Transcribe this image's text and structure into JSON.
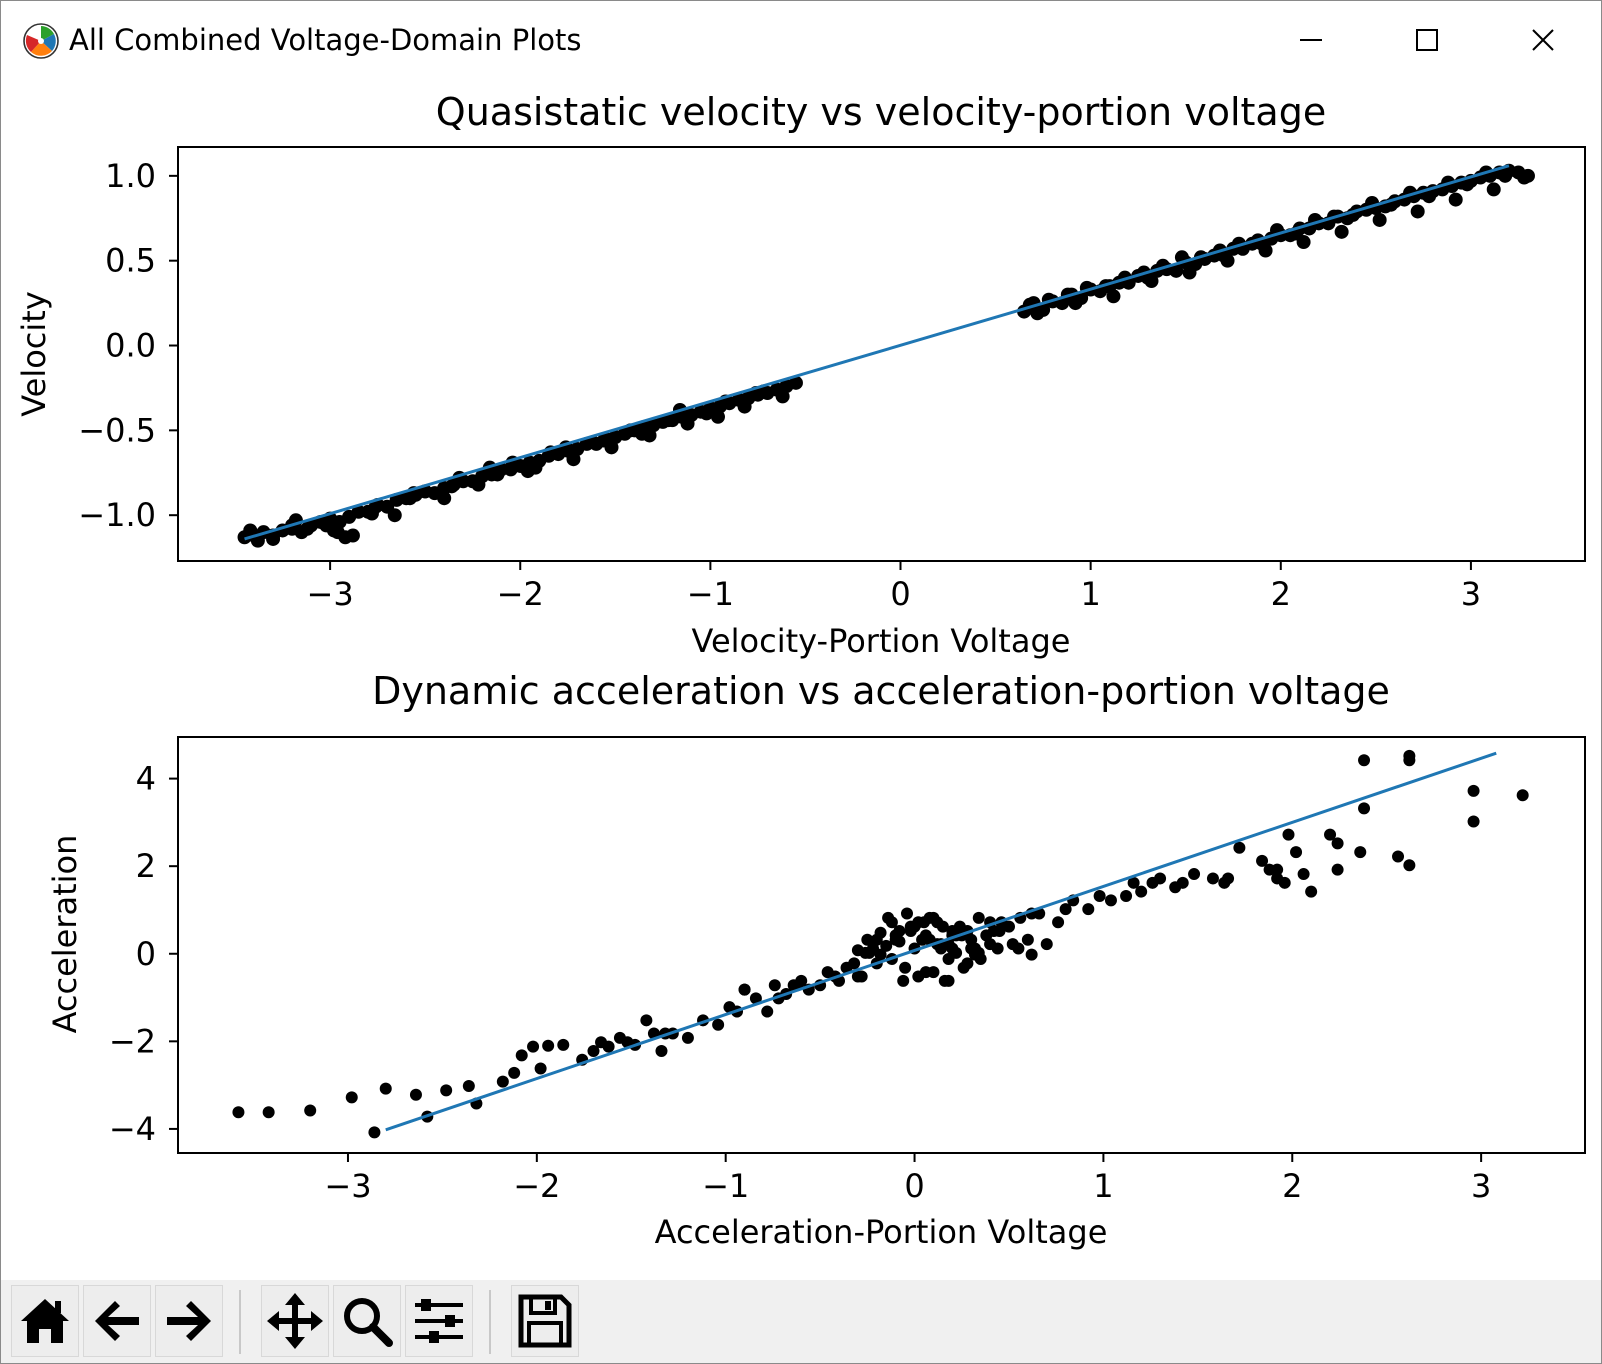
{
  "window": {
    "title": "All Combined Voltage-Domain Plots",
    "controls": {
      "minimize": "minimize-icon",
      "maximize": "maximize-icon",
      "close": "close-icon"
    }
  },
  "toolbar": {
    "buttons": [
      "home-icon",
      "back-arrow-icon",
      "forward-arrow-icon",
      "pan-move-icon",
      "zoom-magnifier-icon",
      "configure-subplots-icon",
      "save-figure-icon"
    ]
  },
  "colors": {
    "fit_line": "#1f77b4",
    "points": "#000000",
    "toolbar_bg": "#f0f0f0"
  },
  "chart_data": [
    {
      "type": "scatter",
      "title": "Quasistatic velocity vs velocity-portion voltage",
      "xlabel": "Velocity-Portion Voltage",
      "ylabel": "Velocity",
      "xlim": [
        -3.8,
        3.6
      ],
      "ylim": [
        -1.27,
        1.17
      ],
      "xticks": [
        -3,
        -2,
        -1,
        0,
        1,
        2,
        3
      ],
      "xtick_labels": [
        "−3",
        "−2",
        "−1",
        "0",
        "1",
        "2",
        "3"
      ],
      "yticks": [
        -1.0,
        -0.5,
        0.0,
        0.5,
        1.0
      ],
      "ytick_labels": [
        "−1.0",
        "−0.5",
        "0.0",
        "0.5",
        "1.0"
      ],
      "grid": false,
      "legend": "none",
      "series": [
        {
          "kind": "points",
          "x": [
            -3.45,
            -3.4,
            -3.35,
            -3.3,
            -3.25,
            -3.2,
            -3.15,
            -3.1,
            -3.05,
            -3.0,
            -2.95,
            -2.9,
            -2.85,
            -2.8,
            -2.75,
            -2.7,
            -2.65,
            -2.6,
            -2.55,
            -2.5,
            -2.45,
            -2.4,
            -2.35,
            -2.3,
            -2.25,
            -2.2,
            -2.15,
            -2.1,
            -2.05,
            -2.0,
            -1.95,
            -1.9,
            -1.85,
            -1.8,
            -1.75,
            -1.7,
            -1.65,
            -1.6,
            -1.55,
            -1.5,
            -1.45,
            -1.4,
            -1.35,
            -1.3,
            -1.25,
            -1.2,
            -1.15,
            -1.1,
            -1.05,
            -1.0,
            -0.95,
            -0.9,
            -0.85,
            -0.8,
            -0.75,
            -0.7,
            -0.65,
            -0.6,
            -0.55,
            -3.42,
            -3.3,
            -3.2,
            -3.12,
            -3.02,
            -2.96,
            -2.88,
            -2.78,
            -2.66,
            -2.58,
            -2.5,
            -2.4,
            -2.32,
            -2.22,
            -2.12,
            -2.04,
            -1.92,
            -1.84,
            -1.72,
            -1.62,
            -1.52,
            -1.42,
            -1.32,
            -1.22,
            -1.12,
            -1.02,
            -0.92,
            -0.82,
            -0.72,
            -0.62,
            -3.38,
            -3.18,
            -2.98,
            -2.92,
            -2.76,
            -2.56,
            -2.36,
            -2.16,
            -1.96,
            -1.76,
            -1.56,
            -1.36,
            -1.16,
            -0.96,
            -0.76,
            0.65,
            0.7,
            0.75,
            0.8,
            0.85,
            0.9,
            0.95,
            1.0,
            1.05,
            1.1,
            1.15,
            1.2,
            1.25,
            1.3,
            1.35,
            1.4,
            1.45,
            1.5,
            1.55,
            1.6,
            1.65,
            1.7,
            1.75,
            1.8,
            1.85,
            1.9,
            1.95,
            2.0,
            2.05,
            2.1,
            2.15,
            2.2,
            2.25,
            2.3,
            2.35,
            2.4,
            2.45,
            2.5,
            2.55,
            2.6,
            2.65,
            2.7,
            2.75,
            2.8,
            2.85,
            2.9,
            2.95,
            3.0,
            3.05,
            3.1,
            3.15,
            3.2,
            3.25,
            3.3,
            0.68,
            0.78,
            0.88,
            0.98,
            1.08,
            1.18,
            1.28,
            1.38,
            1.48,
            1.58,
            1.68,
            1.78,
            1.88,
            1.98,
            2.08,
            2.18,
            2.28,
            2.38,
            2.48,
            2.58,
            2.68,
            2.78,
            2.88,
            2.98,
            3.08,
            3.18,
            0.72,
            0.92,
            1.12,
            1.32,
            1.52,
            1.72,
            1.92,
            2.12,
            2.32,
            2.52,
            2.72,
            2.92,
            3.12,
            3.28
          ],
          "y": [
            -1.13,
            -1.12,
            -1.1,
            -1.12,
            -1.09,
            -1.08,
            -1.1,
            -1.06,
            -1.04,
            -1.02,
            -1.04,
            -1.01,
            -0.98,
            -0.98,
            -0.94,
            -0.95,
            -0.91,
            -0.9,
            -0.88,
            -0.86,
            -0.87,
            -0.84,
            -0.82,
            -0.8,
            -0.8,
            -0.77,
            -0.76,
            -0.73,
            -0.73,
            -0.71,
            -0.69,
            -0.68,
            -0.65,
            -0.64,
            -0.62,
            -0.61,
            -0.58,
            -0.58,
            -0.55,
            -0.54,
            -0.52,
            -0.5,
            -0.48,
            -0.47,
            -0.45,
            -0.44,
            -0.42,
            -0.41,
            -0.39,
            -0.37,
            -0.36,
            -0.34,
            -0.32,
            -0.31,
            -0.29,
            -0.28,
            -0.26,
            -0.24,
            -0.22,
            -1.09,
            -1.14,
            -1.06,
            -1.08,
            -1.06,
            -1.1,
            -1.12,
            -0.99,
            -1.0,
            -0.9,
            -0.86,
            -0.9,
            -0.78,
            -0.82,
            -0.76,
            -0.69,
            -0.72,
            -0.63,
            -0.67,
            -0.57,
            -0.6,
            -0.5,
            -0.53,
            -0.44,
            -0.46,
            -0.4,
            -0.33,
            -0.36,
            -0.27,
            -0.3,
            -1.15,
            -1.03,
            -1.09,
            -1.13,
            -0.95,
            -0.87,
            -0.83,
            -0.72,
            -0.74,
            -0.6,
            -0.56,
            -0.52,
            -0.38,
            -0.42,
            -0.28,
            0.2,
            0.25,
            0.21,
            0.26,
            0.25,
            0.3,
            0.28,
            0.33,
            0.32,
            0.35,
            0.37,
            0.37,
            0.41,
            0.4,
            0.44,
            0.45,
            0.44,
            0.49,
            0.48,
            0.51,
            0.53,
            0.53,
            0.57,
            0.57,
            0.6,
            0.6,
            0.63,
            0.65,
            0.65,
            0.69,
            0.69,
            0.72,
            0.72,
            0.76,
            0.75,
            0.79,
            0.8,
            0.81,
            0.82,
            0.85,
            0.86,
            0.88,
            0.9,
            0.91,
            0.92,
            0.94,
            0.96,
            0.97,
            0.99,
            1.0,
            1.02,
            1.03,
            1.02,
            1.0,
            0.24,
            0.27,
            0.3,
            0.34,
            0.35,
            0.4,
            0.43,
            0.47,
            0.52,
            0.52,
            0.56,
            0.6,
            0.62,
            0.68,
            0.66,
            0.74,
            0.76,
            0.77,
            0.84,
            0.83,
            0.9,
            0.88,
            0.96,
            0.95,
            1.02,
            1.0,
            0.19,
            0.25,
            0.29,
            0.38,
            0.43,
            0.5,
            0.56,
            0.61,
            0.67,
            0.74,
            0.79,
            0.86,
            0.92,
            0.99
          ]
        },
        {
          "kind": "line",
          "x": [
            -3.45,
            3.2
          ],
          "y": [
            -1.14,
            1.06
          ]
        }
      ]
    },
    {
      "type": "scatter",
      "title": "Dynamic acceleration vs acceleration-portion voltage",
      "xlabel": "Acceleration-Portion Voltage",
      "ylabel": "Acceleration",
      "xlim": [
        -3.9,
        3.55
      ],
      "ylim": [
        -4.55,
        4.95
      ],
      "xticks": [
        -3,
        -2,
        -1,
        0,
        1,
        2,
        3
      ],
      "xtick_labels": [
        "−3",
        "−2",
        "−1",
        "0",
        "1",
        "2",
        "3"
      ],
      "yticks": [
        -4,
        -2,
        0,
        2,
        4
      ],
      "ytick_labels": [
        "−4",
        "−2",
        "0",
        "2",
        "4"
      ],
      "grid": false,
      "legend": "none",
      "series": [
        {
          "kind": "points",
          "x": [
            -3.58,
            -3.42,
            -3.2,
            -2.98,
            -2.86,
            -2.8,
            -2.64,
            -2.58,
            -2.48,
            -2.36,
            -2.32,
            -2.18,
            -2.12,
            -2.08,
            -2.02,
            -1.98,
            -1.94,
            -1.86,
            -1.76,
            -1.7,
            -1.62,
            -1.56,
            -1.48,
            -1.42,
            -1.38,
            -1.34,
            -1.28,
            -1.2,
            -1.12,
            -1.04,
            -0.98,
            -0.94,
            -0.9,
            -0.84,
            -0.78,
            -0.74,
            -0.68,
            -0.64,
            -0.6,
            -0.56,
            -0.5,
            -0.46,
            -0.4,
            -0.36,
            -0.32,
            -0.3,
            -0.28,
            -0.25,
            -0.22,
            -0.2,
            -0.18,
            -0.15,
            -0.12,
            -0.1,
            -0.08,
            -0.05,
            -0.02,
            0.0,
            0.02,
            0.05,
            0.08,
            0.1,
            0.12,
            0.15,
            0.18,
            0.2,
            0.22,
            0.25,
            0.28,
            0.3,
            0.32,
            0.35,
            0.38,
            0.4,
            0.45,
            0.5,
            0.55,
            0.6,
            0.62,
            0.66,
            0.7,
            0.76,
            0.8,
            0.84,
            0.92,
            0.98,
            1.04,
            1.12,
            1.16,
            1.2,
            1.26,
            1.3,
            1.38,
            1.42,
            1.48,
            1.58,
            1.64,
            1.72,
            1.84,
            1.92,
            1.98,
            2.02,
            2.1,
            2.2,
            2.24,
            2.38,
            2.62,
            2.62,
            2.96,
            2.96,
            3.22,
            -0.3,
            -0.18,
            -0.1,
            0.0,
            0.06,
            0.14,
            0.2,
            0.26,
            0.34,
            0.4,
            0.56,
            0.62,
            -0.06,
            0.04,
            0.12,
            0.18,
            0.24,
            0.3,
            1.66,
            1.88,
            1.92,
            1.96,
            2.06,
            2.24,
            2.36,
            2.56,
            -0.42,
            -0.24,
            -0.12,
            0.08,
            0.16,
            0.28,
            0.46,
            -0.9,
            -0.72,
            -0.62,
            -1.66,
            -1.52,
            -1.32,
            -0.2,
            -0.08,
            0.02,
            0.14,
            0.22,
            0.34,
            0.44,
            0.52,
            -0.26,
            -0.14,
            -0.04,
            0.06,
            0.2,
            0.32,
            0.42,
            0.1,
            0.18,
            -0.02
          ],
          "y": [
            -3.62,
            -3.62,
            -3.58,
            -3.28,
            -4.08,
            -3.08,
            -3.22,
            -3.72,
            -3.12,
            -3.02,
            -3.42,
            -2.92,
            -2.72,
            -2.32,
            -2.12,
            -2.62,
            -2.1,
            -2.08,
            -2.42,
            -2.22,
            -2.12,
            -1.92,
            -2.08,
            -1.52,
            -1.82,
            -2.22,
            -1.82,
            -1.92,
            -1.52,
            -1.62,
            -1.22,
            -1.32,
            -0.82,
            -1.02,
            -1.32,
            -0.72,
            -0.92,
            -0.72,
            -0.62,
            -0.82,
            -0.72,
            -0.42,
            -0.62,
            -0.32,
            -0.22,
            0.08,
            -0.52,
            0.32,
            0.12,
            -0.22,
            0.48,
            0.18,
            -0.12,
            0.42,
            0.28,
            -0.32,
            0.52,
            0.12,
            -0.52,
            0.72,
            0.32,
            -0.42,
            0.22,
            0.62,
            -0.12,
            0.52,
            0.02,
            0.42,
            -0.22,
            0.32,
            0.12,
            -0.12,
            0.42,
            0.22,
            0.52,
            0.62,
            0.12,
            0.32,
            -0.02,
            0.92,
            0.22,
            0.72,
            1.02,
            1.22,
            1.02,
            1.32,
            1.22,
            1.32,
            1.62,
            1.42,
            1.62,
            1.72,
            1.52,
            1.62,
            1.82,
            1.72,
            1.62,
            2.42,
            2.12,
            1.92,
            2.72,
            2.32,
            1.42,
            2.72,
            2.52,
            3.32,
            4.42,
            2.02,
            3.02,
            3.72,
            3.62,
            -0.52,
            -0.02,
            0.32,
            0.62,
            -0.42,
            0.12,
            0.42,
            -0.32,
            0.82,
            0.72,
            0.82,
            0.92,
            -0.62,
            0.32,
            0.72,
            0.22,
            0.62,
            0.12,
            1.72,
            1.92,
            1.72,
            1.62,
            1.82,
            1.92,
            2.32,
            2.22,
            -0.52,
            0.02,
            0.72,
            0.82,
            -0.62,
            0.52,
            0.72,
            -0.82,
            -1.02,
            -0.72,
            -2.02,
            -2.02,
            -1.82,
            0.32,
            0.52,
            0.72,
            0.22,
            0.42,
            0.02,
            0.12,
            0.22,
            0.02,
            0.82,
            0.92,
            0.42,
            0.12,
            -0.02,
            0.52,
            0.82,
            -0.62,
            0.62
          ],
          "y_note_outliers": [
            [
              2.38,
              4.42
            ],
            [
              2.62,
              4.52
            ]
          ]
        },
        {
          "kind": "line",
          "x": [
            -2.8,
            3.08
          ],
          "y": [
            -4.02,
            4.58
          ]
        }
      ]
    }
  ]
}
